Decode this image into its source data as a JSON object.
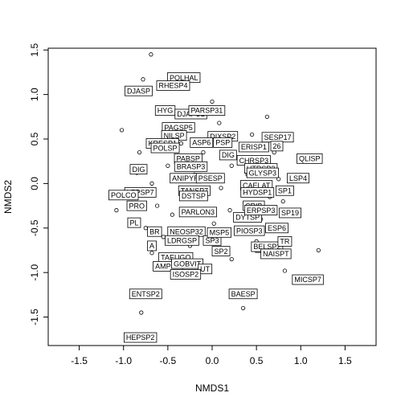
{
  "chart_data": {
    "type": "scatter",
    "title": "",
    "xlabel": "NMDS1",
    "ylabel": "NMDS2",
    "xlim": [
      -1.85,
      1.85
    ],
    "ylim": [
      -1.82,
      1.52
    ],
    "xticks": [
      "-1.5",
      "-1.0",
      "-0.5",
      "0.0",
      "0.5",
      "1.0",
      "1.5"
    ],
    "xtick_values": [
      -1.5,
      -1.0,
      -0.5,
      0.0,
      0.5,
      1.0,
      1.5
    ],
    "yticks": [
      "-1.5",
      "-1.0",
      "-0.5",
      "0.0",
      "0.5",
      "1.0",
      "1.5"
    ],
    "ytick_values": [
      -1.5,
      -1.0,
      -0.5,
      0.0,
      0.5,
      1.0,
      1.5
    ],
    "grid": false,
    "legend": "none",
    "points": [
      {
        "x": -0.69,
        "y": 1.45
      },
      {
        "x": -0.78,
        "y": 1.17
      },
      {
        "x": -1.02,
        "y": 0.6
      },
      {
        "x": -0.82,
        "y": 0.35
      },
      {
        "x": -1.12,
        "y": -0.15
      },
      {
        "x": -1.08,
        "y": -0.3
      },
      {
        "x": -0.85,
        "y": 0.12
      },
      {
        "x": -0.68,
        "y": 0.0
      },
      {
        "x": -0.62,
        "y": -0.25
      },
      {
        "x": -0.75,
        "y": -0.5
      },
      {
        "x": -0.68,
        "y": -0.78
      },
      {
        "x": -0.55,
        "y": -0.6
      },
      {
        "x": -0.45,
        "y": -0.35
      },
      {
        "x": -0.3,
        "y": -0.1
      },
      {
        "x": -0.2,
        "y": 0.1
      },
      {
        "x": -0.1,
        "y": 0.35
      },
      {
        "x": 0.0,
        "y": 0.92
      },
      {
        "x": 0.08,
        "y": 0.68
      },
      {
        "x": 0.15,
        "y": 0.45
      },
      {
        "x": 0.22,
        "y": 0.2
      },
      {
        "x": 0.1,
        "y": -0.05
      },
      {
        "x": 0.2,
        "y": -0.3
      },
      {
        "x": 0.3,
        "y": -0.55
      },
      {
        "x": 0.22,
        "y": -0.85
      },
      {
        "x": 0.35,
        "y": -1.4
      },
      {
        "x": -0.8,
        "y": -1.45
      },
      {
        "x": 0.55,
        "y": -0.4
      },
      {
        "x": 0.5,
        "y": -0.65
      },
      {
        "x": 0.62,
        "y": 0.75
      },
      {
        "x": 0.45,
        "y": 0.55
      },
      {
        "x": 0.7,
        "y": 0.35
      },
      {
        "x": 0.75,
        "y": 0.05
      },
      {
        "x": 0.8,
        "y": -0.2
      },
      {
        "x": 0.82,
        "y": -0.98
      },
      {
        "x": 0.65,
        "y": -0.15
      },
      {
        "x": 1.2,
        "y": -0.75
      },
      {
        "x": 0.4,
        "y": 0.1
      },
      {
        "x": -0.35,
        "y": 0.45
      },
      {
        "x": -0.5,
        "y": 0.2
      },
      {
        "x": -0.25,
        "y": -0.7
      },
      {
        "x": 0.02,
        "y": -0.45
      }
    ],
    "labels": [
      {
        "text": "POLHAL",
        "x": -0.32,
        "y": 1.19
      },
      {
        "text": "RHESP4",
        "x": -0.44,
        "y": 1.1
      },
      {
        "text": "DJASP",
        "x": -0.83,
        "y": 1.04
      },
      {
        "text": "HYG",
        "x": -0.53,
        "y": 0.82
      },
      {
        "text": "DJAPUL",
        "x": -0.24,
        "y": 0.78
      },
      {
        "text": "PARSP31",
        "x": -0.06,
        "y": 0.82
      },
      {
        "text": "PAGSP5",
        "x": -0.38,
        "y": 0.63
      },
      {
        "text": "NILSP",
        "x": -0.43,
        "y": 0.54
      },
      {
        "text": "DIXSP2",
        "x": 0.12,
        "y": 0.53
      },
      {
        "text": "SESP17",
        "x": 0.74,
        "y": 0.52
      },
      {
        "text": "KRESP1",
        "x": -0.56,
        "y": 0.45
      },
      {
        "text": "ASP6",
        "x": -0.12,
        "y": 0.46
      },
      {
        "text": "PSP",
        "x": 0.12,
        "y": 0.46
      },
      {
        "text": "POLSP",
        "x": -0.53,
        "y": 0.4
      },
      {
        "text": "ERISP1",
        "x": 0.47,
        "y": 0.41
      },
      {
        "text": "26",
        "x": 0.73,
        "y": 0.42
      },
      {
        "text": "PABSP",
        "x": -0.27,
        "y": 0.28
      },
      {
        "text": "DIG",
        "x": 0.18,
        "y": 0.32
      },
      {
        "text": "BRASP3",
        "x": -0.24,
        "y": 0.19
      },
      {
        "text": "CHRSP3",
        "x": 0.47,
        "y": 0.26
      },
      {
        "text": "QLISP",
        "x": 1.1,
        "y": 0.28
      },
      {
        "text": "HTRSP3",
        "x": 0.55,
        "y": 0.17
      },
      {
        "text": "GLYSP3",
        "x": 0.57,
        "y": 0.12
      },
      {
        "text": "LSP4",
        "x": 0.97,
        "y": 0.06
      },
      {
        "text": "DIG",
        "x": -0.83,
        "y": 0.16
      },
      {
        "text": "ANIPYR",
        "x": -0.3,
        "y": 0.06
      },
      {
        "text": "PSESP",
        "x": -0.02,
        "y": 0.06
      },
      {
        "text": "LEPSP7",
        "x": -0.81,
        "y": -0.1
      },
      {
        "text": "TANSP7",
        "x": -0.2,
        "y": -0.08
      },
      {
        "text": "CAELAT",
        "x": 0.5,
        "y": -0.02
      },
      {
        "text": "HYDSP1",
        "x": 0.51,
        "y": -0.1
      },
      {
        "text": "SP1",
        "x": 0.82,
        "y": -0.08
      },
      {
        "text": "POLCO",
        "x": -1.0,
        "y": -0.13
      },
      {
        "text": "DSTSP",
        "x": -0.21,
        "y": -0.14
      },
      {
        "text": "PRO",
        "x": -0.85,
        "y": -0.25
      },
      {
        "text": "CRIB",
        "x": 0.47,
        "y": -0.25
      },
      {
        "text": "PARLON3",
        "x": -0.16,
        "y": -0.32
      },
      {
        "text": "DYTSP",
        "x": 0.4,
        "y": -0.38
      },
      {
        "text": "SP19",
        "x": 0.88,
        "y": -0.33
      },
      {
        "text": "PL",
        "x": -0.88,
        "y": -0.44
      },
      {
        "text": "NEOSP32",
        "x": -0.29,
        "y": -0.54
      },
      {
        "text": "PIOSP3",
        "x": 0.42,
        "y": -0.53
      },
      {
        "text": "ESP6",
        "x": 0.73,
        "y": -0.5
      },
      {
        "text": "ERPSP3",
        "x": 0.55,
        "y": -0.3
      },
      {
        "text": "BR",
        "x": -0.65,
        "y": -0.54
      },
      {
        "text": "LDRGSP",
        "x": -0.34,
        "y": -0.64
      },
      {
        "text": "SP3",
        "x": 0.0,
        "y": -0.64
      },
      {
        "text": "MSP5",
        "x": 0.08,
        "y": -0.55
      },
      {
        "text": "A",
        "x": -0.68,
        "y": -0.7
      },
      {
        "text": "SP2",
        "x": 0.1,
        "y": -0.76
      },
      {
        "text": "SMS",
        "x": 0.6,
        "y": -0.72
      },
      {
        "text": "BELSP2",
        "x": 0.62,
        "y": -0.71
      },
      {
        "text": "TR",
        "x": 0.82,
        "y": -0.65
      },
      {
        "text": "NAISPT",
        "x": 0.72,
        "y": -0.79
      },
      {
        "text": "TAEUGO",
        "x": -0.41,
        "y": -0.83
      },
      {
        "text": "AMPSP",
        "x": -0.5,
        "y": -0.93
      },
      {
        "text": "GOBVIT",
        "x": -0.28,
        "y": -0.9
      },
      {
        "text": "UT",
        "x": -0.08,
        "y": -0.96
      },
      {
        "text": "ISOSP2",
        "x": -0.3,
        "y": -1.02
      },
      {
        "text": "MICSP7",
        "x": 1.08,
        "y": -1.08
      },
      {
        "text": "ENTSP2",
        "x": -0.75,
        "y": -1.24
      },
      {
        "text": "BAESP",
        "x": 0.35,
        "y": -1.24
      },
      {
        "text": "HEPSP2",
        "x": -0.81,
        "y": -1.73
      }
    ]
  }
}
